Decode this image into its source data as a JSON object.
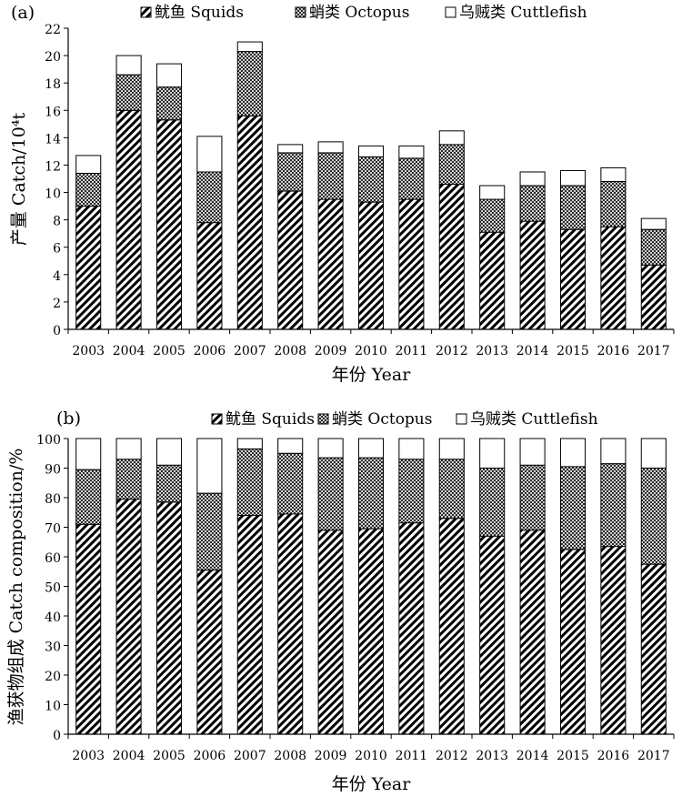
{
  "chart_data": [
    {
      "type": "bar",
      "stacked": true,
      "panel_label": "(a)",
      "categories": [
        "2003",
        "2004",
        "2005",
        "2006",
        "2007",
        "2008",
        "2009",
        "2010",
        "2011",
        "2012",
        "2013",
        "2014",
        "2015",
        "2016",
        "2017"
      ],
      "series": [
        {
          "name": "鱿鱼 Squids",
          "pattern": "diagonal-dense",
          "values": [
            9.0,
            16.0,
            15.3,
            7.8,
            15.6,
            10.1,
            9.5,
            9.3,
            9.5,
            10.6,
            7.1,
            7.9,
            7.3,
            7.5,
            4.7
          ]
        },
        {
          "name": "蛸类 Octopus",
          "pattern": "crosshatch",
          "values": [
            2.4,
            2.6,
            2.4,
            3.7,
            4.7,
            2.8,
            3.4,
            3.3,
            3.0,
            2.9,
            2.4,
            2.6,
            3.2,
            3.3,
            2.6
          ]
        },
        {
          "name": "乌贼类 Cuttlefish",
          "pattern": "white",
          "values": [
            1.3,
            1.4,
            1.7,
            2.6,
            0.7,
            0.6,
            0.8,
            0.8,
            0.9,
            1.0,
            1.0,
            1.0,
            1.1,
            1.0,
            0.8
          ]
        }
      ],
      "xlabel": "年份 Year",
      "ylabel": "产量 Catch/10⁴t",
      "ylim": [
        0,
        22
      ],
      "yticks": [
        "0",
        "2",
        "4",
        "6",
        "8",
        "10",
        "12",
        "14",
        "16",
        "18",
        "20",
        "22"
      ],
      "legend": "top"
    },
    {
      "type": "bar",
      "stacked": true,
      "panel_label": "(b)",
      "categories": [
        "2003",
        "2004",
        "2005",
        "2006",
        "2007",
        "2008",
        "2009",
        "2010",
        "2011",
        "2012",
        "2013",
        "2014",
        "2015",
        "2016",
        "2017"
      ],
      "series": [
        {
          "name": "鱿鱼 Squids",
          "pattern": "diagonal-dense",
          "values": [
            71,
            79.5,
            78.5,
            55.5,
            74,
            74.5,
            69,
            69.5,
            71.5,
            73,
            67,
            69,
            62.5,
            63.5,
            57.5
          ]
        },
        {
          "name": "蛸类 Octopus",
          "pattern": "crosshatch",
          "values": [
            18.5,
            13.5,
            12.5,
            26,
            22.5,
            20.5,
            24.5,
            24,
            21.5,
            20,
            23,
            22,
            28,
            28,
            32.5
          ]
        },
        {
          "name": "乌贼类 Cuttlefish",
          "pattern": "white",
          "values": [
            10.5,
            7,
            9,
            18.5,
            3.5,
            5,
            6.5,
            6.5,
            7,
            7,
            10,
            9,
            9.5,
            8.5,
            10
          ]
        }
      ],
      "xlabel": "年份 Year",
      "ylabel": "渔获物组成 Catch composition/%",
      "ylim": [
        0,
        100
      ],
      "yticks": [
        "0",
        "10",
        "20",
        "30",
        "40",
        "50",
        "60",
        "70",
        "80",
        "90",
        "100"
      ],
      "legend": "top"
    }
  ],
  "colors": {
    "ink": "#000000",
    "background": "#ffffff"
  }
}
